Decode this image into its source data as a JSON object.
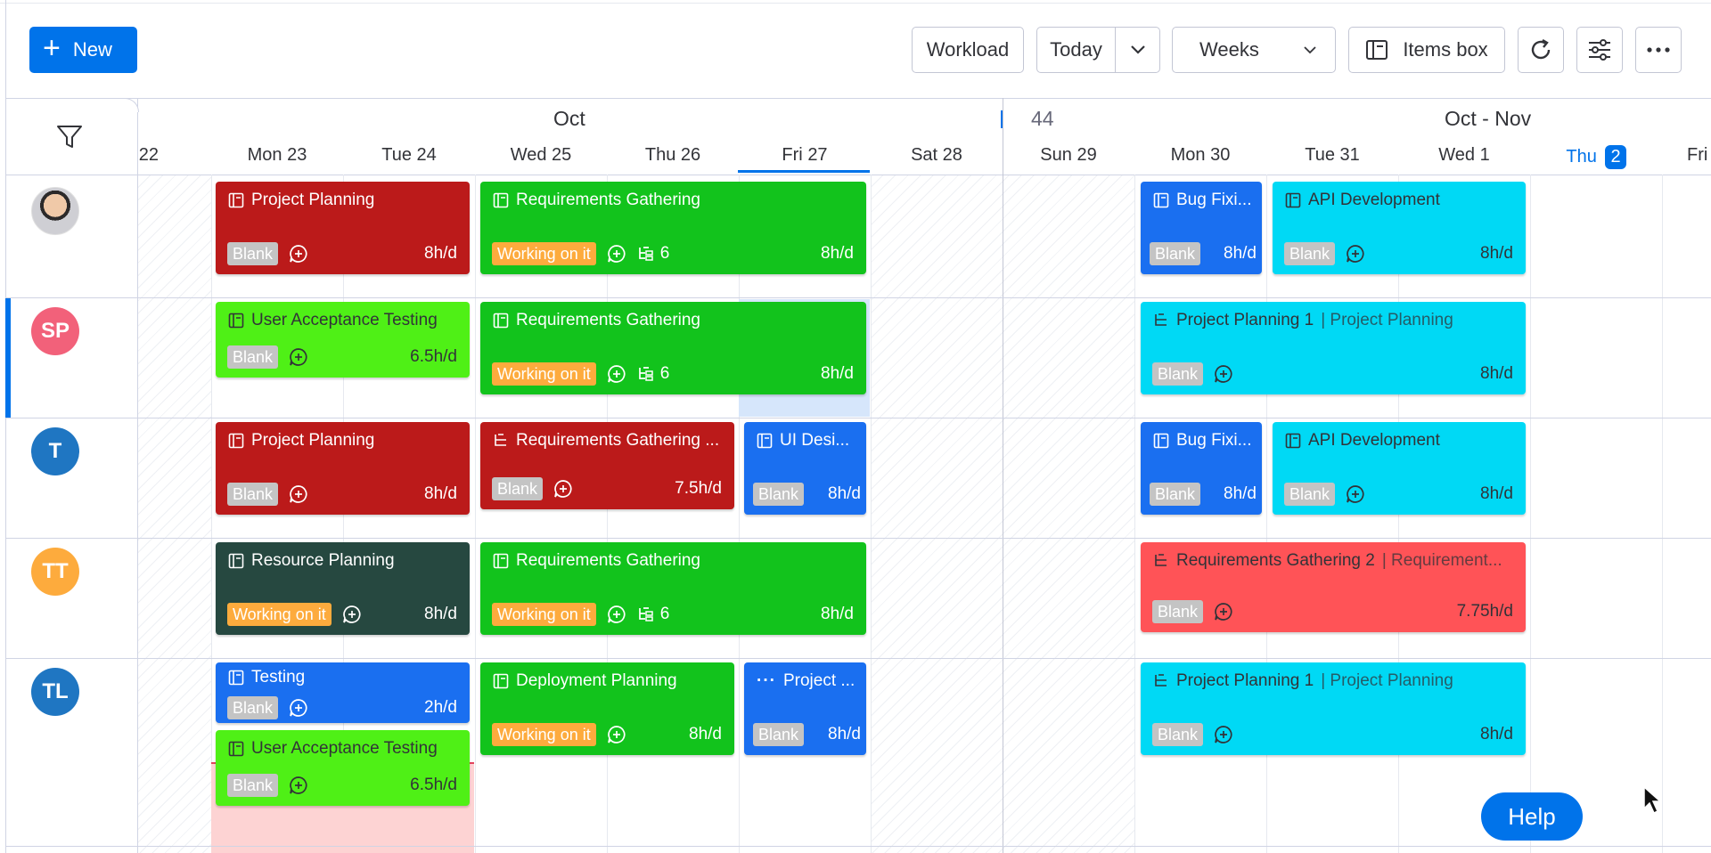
{
  "toolbar": {
    "new_label": "New",
    "workload_label": "Workload",
    "today_label": "Today",
    "weeks_label": "Weeks",
    "items_box_label": "Items box"
  },
  "calendar": {
    "month_left": "Oct",
    "week_number": "44",
    "month_right": "Oct  -  Nov",
    "days": [
      {
        "name": "",
        "num": "22"
      },
      {
        "name": "Mon",
        "num": "23"
      },
      {
        "name": "Tue",
        "num": "24"
      },
      {
        "name": "Wed",
        "num": "25"
      },
      {
        "name": "Thu",
        "num": "26"
      },
      {
        "name": "Fri",
        "num": "27"
      },
      {
        "name": "Sat",
        "num": "28"
      },
      {
        "name": "Sun",
        "num": "29"
      },
      {
        "name": "Mon",
        "num": "30"
      },
      {
        "name": "Tue",
        "num": "31"
      },
      {
        "name": "Wed",
        "num": "1"
      },
      {
        "name": "Thu",
        "num": "2"
      },
      {
        "name": "Fri",
        "num": ""
      }
    ]
  },
  "people": [
    {
      "initials": "",
      "color": "#cfcfd4"
    },
    {
      "initials": "SP",
      "color": "#f2617a"
    },
    {
      "initials": "T",
      "color": "#1f76c2"
    },
    {
      "initials": "TT",
      "color": "#fdab3d"
    },
    {
      "initials": "TL",
      "color": "#1f76c2"
    }
  ],
  "cards": {
    "r0a": {
      "title": "Project Planning",
      "tag": "Blank",
      "hours": "8h/d"
    },
    "r0b": {
      "title": "Requirements Gathering",
      "tag": "Working on it",
      "subitems": "6",
      "hours": "8h/d"
    },
    "r0c": {
      "title": "Bug Fixi...",
      "tag": "Blank",
      "hours": "8h/d"
    },
    "r0d": {
      "title": "API Development",
      "tag": "Blank",
      "hours": "8h/d"
    },
    "r1a": {
      "title": "User Acceptance Testing",
      "tag": "Blank",
      "hours": "6.5h/d"
    },
    "r1b": {
      "title": "Requirements Gathering",
      "tag": "Working on it",
      "subitems": "6",
      "hours": "8h/d"
    },
    "r1c": {
      "title": "Project Planning 1",
      "parent": "| Project Planning",
      "tag": "Blank",
      "hours": "8h/d"
    },
    "r2a": {
      "title": "Project Planning",
      "tag": "Blank",
      "hours": "8h/d"
    },
    "r2b": {
      "title": "Requirements Gathering ...",
      "tag": "Blank",
      "hours": "7.5h/d"
    },
    "r2c": {
      "title": "UI Desi...",
      "tag": "Blank",
      "hours": "8h/d"
    },
    "r2d": {
      "title": "Bug Fixi...",
      "tag": "Blank",
      "hours": "8h/d"
    },
    "r2e": {
      "title": "API Development",
      "tag": "Blank",
      "hours": "8h/d"
    },
    "r3a": {
      "title": "Resource Planning",
      "tag": "Working on it",
      "hours": "8h/d"
    },
    "r3b": {
      "title": "Requirements Gathering",
      "tag": "Working on it",
      "subitems": "6",
      "hours": "8h/d"
    },
    "r3c": {
      "title": "Requirements Gathering 2",
      "parent": "| Requirement...",
      "tag": "Blank",
      "hours": "7.75h/d"
    },
    "r4a": {
      "title": "Testing",
      "tag": "Blank",
      "hours": "2h/d"
    },
    "r4b": {
      "title": "User Acceptance Testing",
      "tag": "Blank",
      "hours": "6.5h/d"
    },
    "r4c": {
      "title": "Deployment Planning",
      "tag": "Working on it",
      "hours": "8h/d"
    },
    "r4d": {
      "title": "Project ...",
      "tag": "Blank",
      "hours": "8h/d"
    },
    "r4e": {
      "title": "Project Planning 1",
      "parent": "| Project Planning",
      "tag": "Blank",
      "hours": "8h/d"
    }
  },
  "help_label": "Help"
}
